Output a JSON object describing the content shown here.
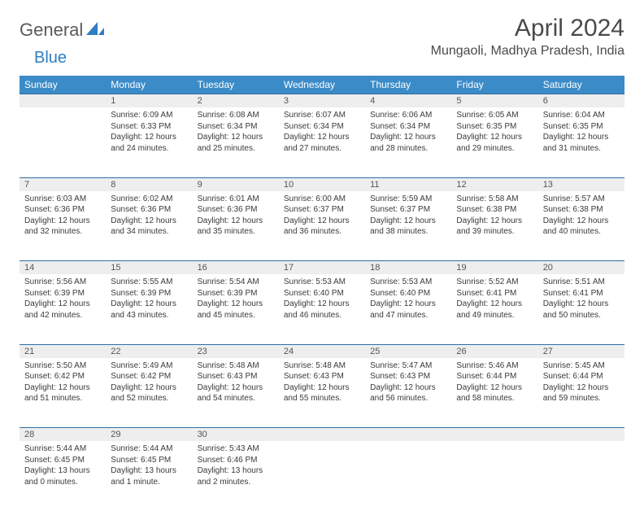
{
  "brand": {
    "part1": "General",
    "part2": "Blue",
    "text_color": "#5a5a5a",
    "accent_color": "#2f7ec2"
  },
  "title": "April 2024",
  "location": "Mungaoli, Madhya Pradesh, India",
  "colors": {
    "header_bg": "#3b8bc8",
    "header_text": "#ffffff",
    "daynum_bg": "#eeeeee",
    "daynum_border": "#2f6fa3",
    "body_text": "#3a3a3a"
  },
  "weekdays": [
    "Sunday",
    "Monday",
    "Tuesday",
    "Wednesday",
    "Thursday",
    "Friday",
    "Saturday"
  ],
  "weeks": [
    [
      {
        "n": "",
        "lines": []
      },
      {
        "n": "1",
        "lines": [
          "Sunrise: 6:09 AM",
          "Sunset: 6:33 PM",
          "Daylight: 12 hours and 24 minutes."
        ]
      },
      {
        "n": "2",
        "lines": [
          "Sunrise: 6:08 AM",
          "Sunset: 6:34 PM",
          "Daylight: 12 hours and 25 minutes."
        ]
      },
      {
        "n": "3",
        "lines": [
          "Sunrise: 6:07 AM",
          "Sunset: 6:34 PM",
          "Daylight: 12 hours and 27 minutes."
        ]
      },
      {
        "n": "4",
        "lines": [
          "Sunrise: 6:06 AM",
          "Sunset: 6:34 PM",
          "Daylight: 12 hours and 28 minutes."
        ]
      },
      {
        "n": "5",
        "lines": [
          "Sunrise: 6:05 AM",
          "Sunset: 6:35 PM",
          "Daylight: 12 hours and 29 minutes."
        ]
      },
      {
        "n": "6",
        "lines": [
          "Sunrise: 6:04 AM",
          "Sunset: 6:35 PM",
          "Daylight: 12 hours and 31 minutes."
        ]
      }
    ],
    [
      {
        "n": "7",
        "lines": [
          "Sunrise: 6:03 AM",
          "Sunset: 6:36 PM",
          "Daylight: 12 hours and 32 minutes."
        ]
      },
      {
        "n": "8",
        "lines": [
          "Sunrise: 6:02 AM",
          "Sunset: 6:36 PM",
          "Daylight: 12 hours and 34 minutes."
        ]
      },
      {
        "n": "9",
        "lines": [
          "Sunrise: 6:01 AM",
          "Sunset: 6:36 PM",
          "Daylight: 12 hours and 35 minutes."
        ]
      },
      {
        "n": "10",
        "lines": [
          "Sunrise: 6:00 AM",
          "Sunset: 6:37 PM",
          "Daylight: 12 hours and 36 minutes."
        ]
      },
      {
        "n": "11",
        "lines": [
          "Sunrise: 5:59 AM",
          "Sunset: 6:37 PM",
          "Daylight: 12 hours and 38 minutes."
        ]
      },
      {
        "n": "12",
        "lines": [
          "Sunrise: 5:58 AM",
          "Sunset: 6:38 PM",
          "Daylight: 12 hours and 39 minutes."
        ]
      },
      {
        "n": "13",
        "lines": [
          "Sunrise: 5:57 AM",
          "Sunset: 6:38 PM",
          "Daylight: 12 hours and 40 minutes."
        ]
      }
    ],
    [
      {
        "n": "14",
        "lines": [
          "Sunrise: 5:56 AM",
          "Sunset: 6:39 PM",
          "Daylight: 12 hours and 42 minutes."
        ]
      },
      {
        "n": "15",
        "lines": [
          "Sunrise: 5:55 AM",
          "Sunset: 6:39 PM",
          "Daylight: 12 hours and 43 minutes."
        ]
      },
      {
        "n": "16",
        "lines": [
          "Sunrise: 5:54 AM",
          "Sunset: 6:39 PM",
          "Daylight: 12 hours and 45 minutes."
        ]
      },
      {
        "n": "17",
        "lines": [
          "Sunrise: 5:53 AM",
          "Sunset: 6:40 PM",
          "Daylight: 12 hours and 46 minutes."
        ]
      },
      {
        "n": "18",
        "lines": [
          "Sunrise: 5:53 AM",
          "Sunset: 6:40 PM",
          "Daylight: 12 hours and 47 minutes."
        ]
      },
      {
        "n": "19",
        "lines": [
          "Sunrise: 5:52 AM",
          "Sunset: 6:41 PM",
          "Daylight: 12 hours and 49 minutes."
        ]
      },
      {
        "n": "20",
        "lines": [
          "Sunrise: 5:51 AM",
          "Sunset: 6:41 PM",
          "Daylight: 12 hours and 50 minutes."
        ]
      }
    ],
    [
      {
        "n": "21",
        "lines": [
          "Sunrise: 5:50 AM",
          "Sunset: 6:42 PM",
          "Daylight: 12 hours and 51 minutes."
        ]
      },
      {
        "n": "22",
        "lines": [
          "Sunrise: 5:49 AM",
          "Sunset: 6:42 PM",
          "Daylight: 12 hours and 52 minutes."
        ]
      },
      {
        "n": "23",
        "lines": [
          "Sunrise: 5:48 AM",
          "Sunset: 6:43 PM",
          "Daylight: 12 hours and 54 minutes."
        ]
      },
      {
        "n": "24",
        "lines": [
          "Sunrise: 5:48 AM",
          "Sunset: 6:43 PM",
          "Daylight: 12 hours and 55 minutes."
        ]
      },
      {
        "n": "25",
        "lines": [
          "Sunrise: 5:47 AM",
          "Sunset: 6:43 PM",
          "Daylight: 12 hours and 56 minutes."
        ]
      },
      {
        "n": "26",
        "lines": [
          "Sunrise: 5:46 AM",
          "Sunset: 6:44 PM",
          "Daylight: 12 hours and 58 minutes."
        ]
      },
      {
        "n": "27",
        "lines": [
          "Sunrise: 5:45 AM",
          "Sunset: 6:44 PM",
          "Daylight: 12 hours and 59 minutes."
        ]
      }
    ],
    [
      {
        "n": "28",
        "lines": [
          "Sunrise: 5:44 AM",
          "Sunset: 6:45 PM",
          "Daylight: 13 hours and 0 minutes."
        ]
      },
      {
        "n": "29",
        "lines": [
          "Sunrise: 5:44 AM",
          "Sunset: 6:45 PM",
          "Daylight: 13 hours and 1 minute."
        ]
      },
      {
        "n": "30",
        "lines": [
          "Sunrise: 5:43 AM",
          "Sunset: 6:46 PM",
          "Daylight: 13 hours and 2 minutes."
        ]
      },
      {
        "n": "",
        "lines": []
      },
      {
        "n": "",
        "lines": []
      },
      {
        "n": "",
        "lines": []
      },
      {
        "n": "",
        "lines": []
      }
    ]
  ]
}
